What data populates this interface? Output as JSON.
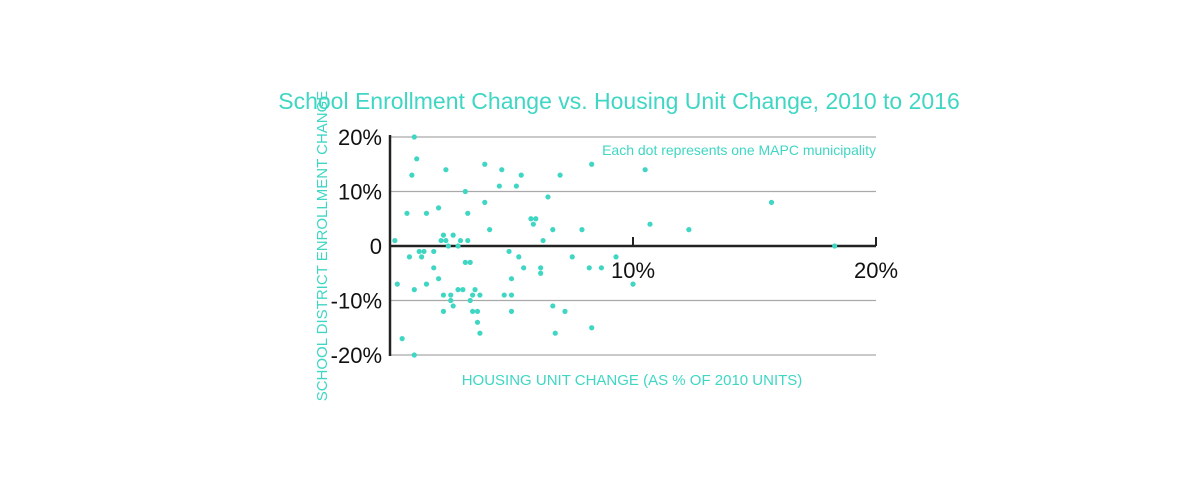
{
  "chart_data": {
    "type": "scatter",
    "title": "School Enrollment Change vs. Housing Unit Change, 2010 to 2016",
    "annotation": "Each dot represents one MAPC municipality",
    "xlabel": "HOUSING UNIT CHANGE (AS % OF 2010 UNITS)",
    "ylabel": "SCHOOL DISTRICT ENROLLMENT CHANGE",
    "xlim": [
      0,
      20
    ],
    "ylim": [
      -20,
      20
    ],
    "x_ticks": [
      {
        "value": 10,
        "label": "10%"
      },
      {
        "value": 20,
        "label": "20%"
      }
    ],
    "y_ticks": [
      {
        "value": 20,
        "label": "20%"
      },
      {
        "value": 10,
        "label": "10%"
      },
      {
        "value": 0,
        "label": "0"
      },
      {
        "value": -10,
        "label": "-10%"
      },
      {
        "value": -20,
        "label": "-20%"
      }
    ],
    "grid": "horizontal",
    "color": "#3fd6c4",
    "points": [
      [
        0.2,
        1
      ],
      [
        0.3,
        -7
      ],
      [
        0.5,
        -17
      ],
      [
        0.7,
        6
      ],
      [
        0.8,
        -2
      ],
      [
        0.9,
        13
      ],
      [
        1.0,
        20
      ],
      [
        1.0,
        -8
      ],
      [
        1.1,
        16
      ],
      [
        1.0,
        -20
      ],
      [
        1.2,
        -1
      ],
      [
        1.3,
        -2
      ],
      [
        1.4,
        -1
      ],
      [
        1.5,
        6
      ],
      [
        1.5,
        -7
      ],
      [
        1.8,
        -1
      ],
      [
        1.8,
        -4
      ],
      [
        2.0,
        -6
      ],
      [
        2.0,
        7
      ],
      [
        2.1,
        1
      ],
      [
        2.2,
        2
      ],
      [
        2.3,
        1
      ],
      [
        2.2,
        -9
      ],
      [
        2.2,
        -12
      ],
      [
        2.3,
        14
      ],
      [
        2.4,
        0
      ],
      [
        2.5,
        -10
      ],
      [
        2.5,
        -9
      ],
      [
        2.6,
        2
      ],
      [
        2.6,
        -11
      ],
      [
        2.8,
        -8
      ],
      [
        2.8,
        0
      ],
      [
        2.9,
        1
      ],
      [
        3.0,
        -8
      ],
      [
        3.1,
        10
      ],
      [
        3.2,
        6
      ],
      [
        3.1,
        -3
      ],
      [
        3.2,
        1
      ],
      [
        3.3,
        -3
      ],
      [
        3.3,
        -10
      ],
      [
        3.4,
        -9
      ],
      [
        3.4,
        -12
      ],
      [
        3.5,
        -8
      ],
      [
        3.6,
        -14
      ],
      [
        3.6,
        -12
      ],
      [
        3.7,
        -16
      ],
      [
        3.7,
        -9
      ],
      [
        3.9,
        15
      ],
      [
        3.9,
        8
      ],
      [
        4.1,
        3
      ],
      [
        4.5,
        11
      ],
      [
        4.6,
        14
      ],
      [
        4.7,
        -9
      ],
      [
        4.9,
        -1
      ],
      [
        5.0,
        -9
      ],
      [
        5.0,
        -6
      ],
      [
        5.0,
        -12
      ],
      [
        5.2,
        11
      ],
      [
        5.3,
        -2
      ],
      [
        5.4,
        13
      ],
      [
        5.5,
        -4
      ],
      [
        5.8,
        5
      ],
      [
        5.9,
        4
      ],
      [
        6.0,
        5
      ],
      [
        6.2,
        -4
      ],
      [
        6.2,
        -5
      ],
      [
        6.3,
        1
      ],
      [
        6.5,
        9
      ],
      [
        6.7,
        3
      ],
      [
        6.7,
        -11
      ],
      [
        6.8,
        -16
      ],
      [
        7.0,
        13
      ],
      [
        7.2,
        -12
      ],
      [
        7.5,
        -2
      ],
      [
        7.9,
        3
      ],
      [
        8.2,
        -4
      ],
      [
        8.3,
        15
      ],
      [
        8.3,
        -15
      ],
      [
        8.7,
        -4
      ],
      [
        9.3,
        -2
      ],
      [
        10.0,
        -7
      ],
      [
        10.5,
        14
      ],
      [
        10.7,
        4
      ],
      [
        12.3,
        3
      ],
      [
        15.7,
        8
      ],
      [
        18.3,
        0
      ]
    ]
  }
}
